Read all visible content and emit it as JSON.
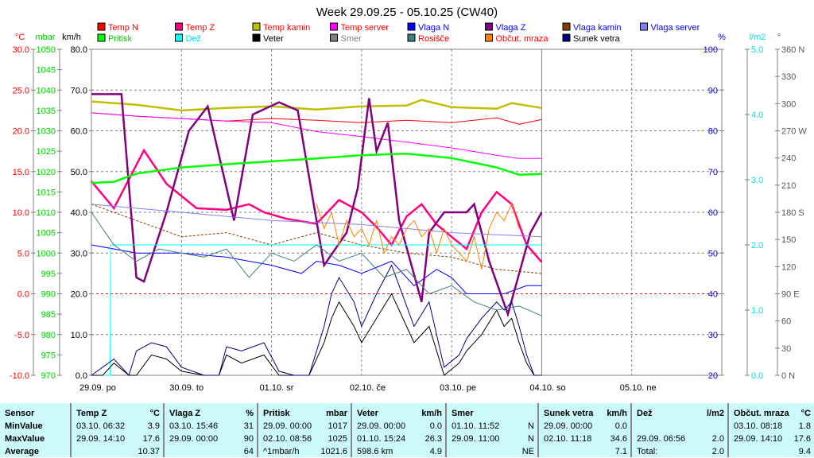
{
  "chart_data": {
    "type": "line",
    "title": "Week 29.09.25 - 05.10.25 (CW40)",
    "x_unit": "hours since 29.09. 00:00",
    "xlim": [
      0,
      168
    ],
    "x_ticks": [
      "29.09. po",
      "30.09. to",
      "01.10. sr",
      "02.10. če",
      "03.10. pe",
      "04.10. so",
      "05.10. ne"
    ],
    "axes": {
      "temp": {
        "label": "°C",
        "range": [
          -10,
          30
        ],
        "ticks": [
          "30.0",
          "25.0",
          "20.0",
          "15.0",
          "10.0",
          "5.0",
          "0.0",
          "-5.0",
          "-10.0"
        ],
        "color": "#ff0000"
      },
      "pressure": {
        "label": "mbar",
        "range": [
          970,
          1050
        ],
        "ticks": [
          "1050",
          "1045",
          "1040",
          "1035",
          "1030",
          "1025",
          "1020",
          "1015",
          "1010",
          "1005",
          "1000",
          "995",
          "990",
          "985",
          "980",
          "975",
          "970"
        ],
        "color": "#00cc00"
      },
      "wind": {
        "label": "km/h",
        "range": [
          0,
          80
        ],
        "ticks": [
          "80.0",
          "70.0",
          "60.0",
          "50.0",
          "40.0",
          "30.0",
          "20.0",
          "10.0",
          "0.0"
        ],
        "color": "#000000"
      },
      "humidity": {
        "label": "%",
        "range": [
          20,
          100
        ],
        "ticks": [
          "100",
          "90",
          "80",
          "70",
          "60",
          "50",
          "40",
          "30",
          "20"
        ],
        "color": "#0000ff"
      },
      "rain": {
        "label": "l/m2",
        "range": [
          0,
          5
        ],
        "ticks": [
          "5.0",
          "4.0",
          "3.0",
          "2.0",
          "1.0",
          "0.0"
        ],
        "color": "#00e0e0"
      },
      "direction": {
        "label": "°",
        "range": [
          0,
          360
        ],
        "ticks": [
          "360 N",
          "330",
          "300",
          "270 W",
          "240",
          "210",
          "180 S",
          "150",
          "120",
          "90 E",
          "60",
          "30",
          "0 N"
        ],
        "color": "#555555"
      }
    },
    "legend": [
      {
        "name": "Temp N",
        "color": "#ff0000",
        "text_color": "#ff0000"
      },
      {
        "name": "Temp Z",
        "color": "#ff0080",
        "text_color": "#ff0000"
      },
      {
        "name": "Temp kamin",
        "color": "#c0c000",
        "text_color": "#ff0000"
      },
      {
        "name": "Temp server",
        "color": "#ff00ff",
        "text_color": "#ff0000"
      },
      {
        "name": "Vlaga N",
        "color": "#0000ff",
        "text_color": "#0000ff"
      },
      {
        "name": "Vlaga Z",
        "color": "#800080",
        "text_color": "#0000ff"
      },
      {
        "name": "Vlaga kamin",
        "color": "#804000",
        "text_color": "#0000ff"
      },
      {
        "name": "Vlaga server",
        "color": "#8080ff",
        "text_color": "#0000ff"
      },
      {
        "name": "Pritisk",
        "color": "#00ff00",
        "text_color": "#00cc00"
      },
      {
        "name": "Dež",
        "color": "#00ffff",
        "text_color": "#00e0e0"
      },
      {
        "name": "Veter",
        "color": "#000000",
        "text_color": "#000000"
      },
      {
        "name": "Smer",
        "color": "#808080",
        "text_color": "#808080"
      },
      {
        "name": "Rosišče",
        "color": "#408080",
        "text_color": "#ff0000"
      },
      {
        "name": "Občut. mraza",
        "color": "#ff8000",
        "text_color": "#ff0000"
      },
      {
        "name": "Sunek vetra",
        "color": "#000080",
        "text_color": "#000000"
      }
    ],
    "series": [
      {
        "name": "Temp N",
        "axis": "temp",
        "color": "#ff0000",
        "x": [
          0,
          12,
          24,
          36,
          48,
          60,
          72,
          84,
          96,
          108,
          114,
          120
        ],
        "y": [
          22.2,
          21.8,
          21.5,
          21.2,
          21.5,
          21.3,
          21.0,
          21.3,
          21.0,
          21.6,
          20.8,
          21.4
        ]
      },
      {
        "name": "Temp Z",
        "axis": "temp",
        "color": "#ff0080",
        "x": [
          0,
          6,
          14,
          20,
          28,
          36,
          42,
          46,
          52,
          60,
          66,
          72,
          76,
          80,
          84,
          88,
          92,
          96,
          100,
          104,
          108,
          112,
          116,
          120
        ],
        "y": [
          13.8,
          10.5,
          17.6,
          13.5,
          10.5,
          10.3,
          11,
          10,
          9.2,
          8.6,
          11.5,
          10,
          8.2,
          6,
          9.5,
          11,
          8.5,
          7,
          5.5,
          10,
          12.5,
          11,
          6,
          3.9
        ]
      },
      {
        "name": "Temp kamin",
        "axis": "temp",
        "color": "#c0c000",
        "x": [
          0,
          12,
          24,
          36,
          48,
          60,
          72,
          84,
          88,
          96,
          108,
          112,
          120
        ],
        "y": [
          23.6,
          23.2,
          22.5,
          22.8,
          23.0,
          22.6,
          23.0,
          23.1,
          23.8,
          22.9,
          22.7,
          23.4,
          22.8
        ]
      },
      {
        "name": "Temp server",
        "axis": "temp",
        "color": "#ff00ff",
        "x": [
          0,
          12,
          24,
          36,
          48,
          60,
          72,
          84,
          96,
          108,
          114,
          120
        ],
        "y": [
          22.2,
          21.8,
          21.5,
          21.2,
          21.0,
          19.9,
          19.3,
          18.6,
          17.9,
          17.0,
          16.6,
          16.6
        ]
      },
      {
        "name": "Vlaga N",
        "axis": "humidity",
        "color": "#0000ff",
        "x": [
          0,
          12,
          24,
          36,
          48,
          56,
          60,
          66,
          72,
          80,
          86,
          92,
          96,
          100,
          104,
          110,
          116,
          120
        ],
        "y": [
          52,
          50,
          50,
          49,
          47,
          45,
          48,
          47,
          45,
          48,
          42,
          46,
          44,
          40,
          40,
          40,
          42,
          42
        ]
      },
      {
        "name": "Vlaga Z",
        "axis": "humidity",
        "color": "#800080",
        "x": [
          0,
          8,
          12,
          14,
          20,
          26,
          31,
          38,
          43,
          50,
          55,
          62,
          68,
          71,
          74,
          76,
          79,
          82,
          85,
          88,
          90,
          94,
          100,
          102,
          106,
          111,
          114,
          117,
          120
        ],
        "y": [
          89,
          89,
          44,
          43,
          60,
          80,
          86,
          58,
          84,
          87,
          85,
          47,
          55,
          66,
          88,
          75,
          82,
          58,
          48,
          38,
          55,
          60,
          60,
          62,
          48,
          35,
          45,
          55,
          60
        ]
      },
      {
        "name": "Vlaga kamin",
        "axis": "humidity",
        "color": "#804000",
        "x": [
          0,
          12,
          24,
          36,
          48,
          60,
          72,
          84,
          96,
          108,
          120
        ],
        "y": [
          62,
          58,
          54,
          55,
          52,
          55,
          52,
          50,
          49,
          46,
          45
        ]
      },
      {
        "name": "Vlaga server",
        "axis": "humidity",
        "color": "#8080ff",
        "x": [
          0,
          24,
          48,
          72,
          96,
          120
        ],
        "y": [
          62,
          60,
          58,
          57,
          55,
          54
        ]
      },
      {
        "name": "Pritisk",
        "axis": "pressure",
        "color": "#00ff00",
        "x": [
          0,
          6,
          12,
          24,
          36,
          48,
          60,
          72,
          84,
          96,
          108,
          114,
          120
        ],
        "y": [
          1017.2,
          1017.5,
          1019.5,
          1021.0,
          1021.8,
          1022.5,
          1023.2,
          1024.0,
          1024.4,
          1023.3,
          1021.0,
          1019.2,
          1019.4
        ]
      },
      {
        "name": "Dež",
        "axis": "rain",
        "color": "#00ffff",
        "x": [
          0,
          5,
          5.1,
          120
        ],
        "y": [
          0,
          0,
          2.0,
          2.0
        ]
      },
      {
        "name": "Veter",
        "axis": "wind",
        "color": "#000000",
        "x": [
          0,
          3,
          6,
          10,
          12,
          16,
          20,
          24,
          30,
          34,
          36,
          40,
          46,
          50,
          54,
          58,
          62,
          64,
          66,
          70,
          72,
          76,
          80,
          82,
          86,
          90,
          94,
          98,
          100,
          104,
          108,
          110,
          112,
          114,
          116,
          118,
          120
        ],
        "y": [
          0,
          0,
          3,
          0,
          0,
          5,
          4,
          1,
          0,
          0,
          5,
          3,
          5,
          0,
          0,
          0,
          8,
          14,
          18,
          12,
          8,
          14,
          20,
          16,
          8,
          12,
          0,
          3,
          6,
          10,
          16,
          12,
          14,
          8,
          3,
          0,
          0
        ]
      },
      {
        "name": "Sunek vetra",
        "axis": "wind",
        "color": "#000080",
        "x": [
          0,
          3,
          6,
          10,
          12,
          16,
          20,
          24,
          30,
          34,
          36,
          40,
          46,
          50,
          54,
          58,
          62,
          64,
          66,
          70,
          72,
          76,
          80,
          82,
          86,
          90,
          94,
          98,
          100,
          104,
          108,
          110,
          112,
          114,
          116,
          118,
          120
        ],
        "y": [
          0,
          2,
          4,
          0,
          6,
          8,
          7,
          2,
          0,
          0,
          7,
          6,
          8,
          1,
          0,
          0,
          12,
          20,
          24,
          18,
          12,
          20,
          27,
          22,
          12,
          18,
          2,
          5,
          9,
          14,
          18,
          16,
          18,
          12,
          5,
          0,
          0
        ]
      },
      {
        "name": "Rosišče",
        "axis": "temp",
        "color": "#408080",
        "x": [
          0,
          6,
          12,
          18,
          24,
          30,
          36,
          42,
          48,
          54,
          60,
          66,
          72,
          78,
          84,
          90,
          96,
          102,
          108,
          114,
          120
        ],
        "y": [
          10,
          6,
          4,
          5.5,
          5,
          4.5,
          5.5,
          2,
          5,
          4,
          6,
          4,
          5,
          2,
          3,
          0,
          1,
          -1,
          -2,
          -1.5,
          -2.7
        ]
      },
      {
        "name": "Občut. mraza",
        "axis": "temp",
        "color": "#ff8000",
        "x": [
          60,
          62,
          64,
          66,
          68,
          70,
          72,
          74,
          76,
          78,
          80,
          82,
          84,
          86,
          88,
          90,
          92,
          94,
          96,
          98,
          100,
          102,
          104,
          106,
          108,
          110,
          112,
          114
        ],
        "y": [
          11,
          8,
          10,
          6,
          9,
          7,
          8,
          6,
          9,
          5,
          7,
          6,
          8,
          9,
          7,
          8,
          5,
          8,
          6,
          5,
          4,
          7,
          3,
          8,
          10,
          9,
          11,
          8
        ]
      }
    ]
  },
  "stats": {
    "headers": [
      {
        "name": "Sensor",
        "unit": ""
      },
      {
        "name": "Temp Z",
        "unit": "°C"
      },
      {
        "name": "Vlaga Z",
        "unit": "%"
      },
      {
        "name": "Pritisk",
        "unit": "mbar"
      },
      {
        "name": "Veter",
        "unit": "km/h"
      },
      {
        "name": "Smer",
        "unit": ""
      },
      {
        "name": "Sunek vetra",
        "unit": "km/h"
      },
      {
        "name": "Dež",
        "unit": "l/m2"
      },
      {
        "name": "Občut. mraza",
        "unit": "°C"
      }
    ],
    "row_labels": [
      "MinValue",
      "MaxValue",
      "Average"
    ],
    "cells": [
      [
        [
          "03.10.  06:32",
          "3.9"
        ],
        [
          "29.09.  14:10",
          "17.6"
        ],
        [
          "",
          "10.37"
        ]
      ],
      [
        [
          "03.10.  15:46",
          "31"
        ],
        [
          "29.09.  00:00",
          "90"
        ],
        [
          "",
          "64"
        ]
      ],
      [
        [
          "29.09.  00:00",
          "1017"
        ],
        [
          "02.10.  08:56",
          "1025"
        ],
        [
          "^1mbar/h",
          "1021.6"
        ]
      ],
      [
        [
          "29.09.  00:00",
          "0.0"
        ],
        [
          "01.10.  15:24",
          "26.3"
        ],
        [
          "598.6 km",
          "4.9"
        ]
      ],
      [
        [
          "01.10.  11:52",
          "N"
        ],
        [
          "29.09.  11:00",
          "N"
        ],
        [
          "",
          "NE"
        ]
      ],
      [
        [
          "29.09.  00:00",
          "0.0"
        ],
        [
          "02.10.  11:18",
          "34.6"
        ],
        [
          "",
          "7.1"
        ]
      ],
      [
        [
          "",
          ""
        ],
        [
          "29.09.  06:56",
          "2.0"
        ],
        [
          "Total:",
          "2.0"
        ]
      ],
      [
        [
          "03.10.  08:18",
          "1.8"
        ],
        [
          "29.09.  14:10",
          "17.6"
        ],
        [
          "",
          "9.4"
        ]
      ]
    ]
  }
}
